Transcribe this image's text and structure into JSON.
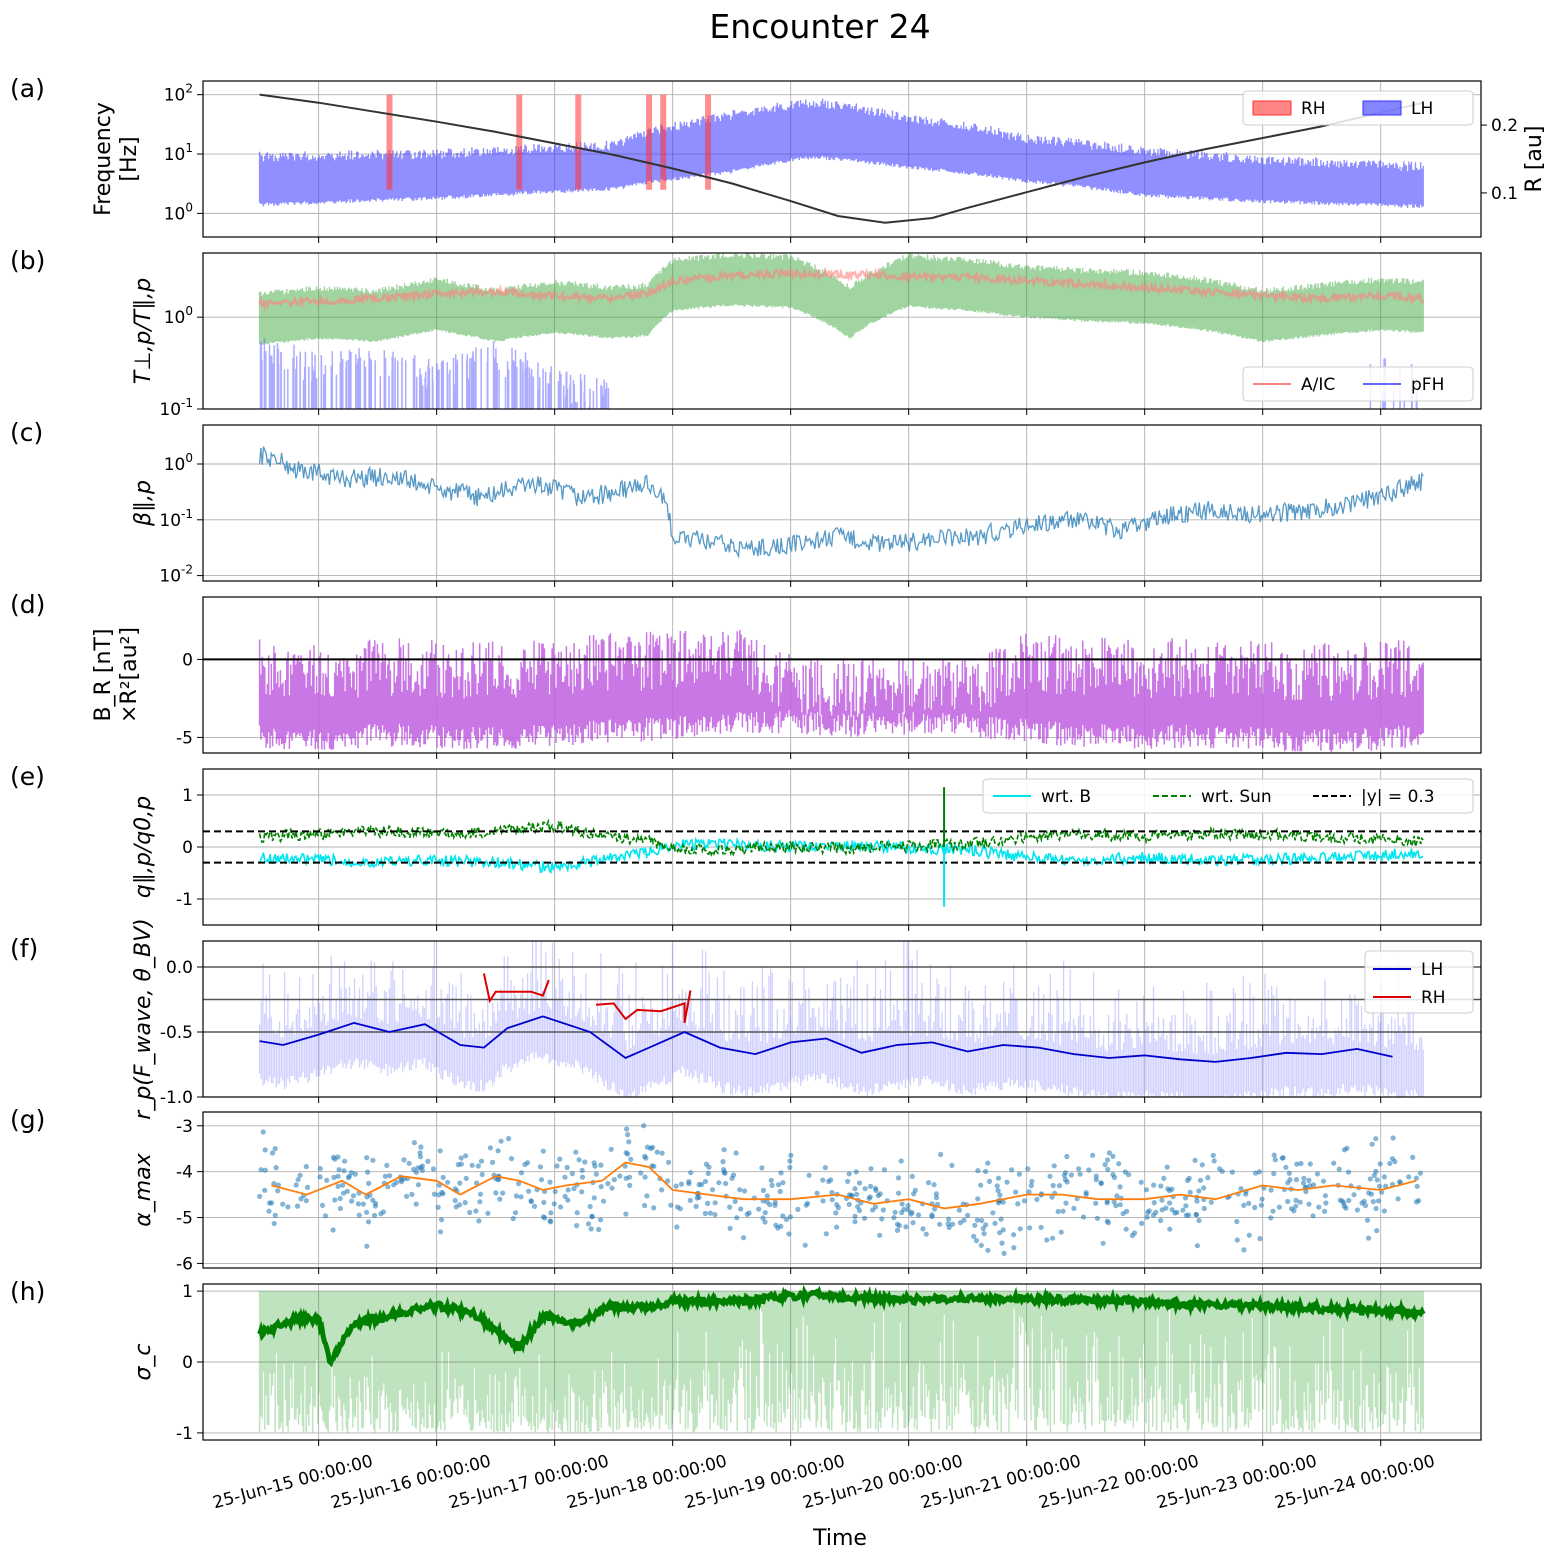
{
  "figure": {
    "title": "Encounter 24",
    "xlabel": "Time",
    "xticks": [
      "25-Jun-15 00:00:00",
      "25-Jun-16 00:00:00",
      "25-Jun-17 00:00:00",
      "25-Jun-18 00:00:00",
      "25-Jun-19 00:00:00",
      "25-Jun-20 00:00:00",
      "25-Jun-21 00:00:00",
      "25-Jun-22 00:00:00",
      "25-Jun-23 00:00:00",
      "25-Jun-24 00:00:00"
    ],
    "xlim_days": [
      14.02,
      24.85
    ],
    "data_span_days": [
      14.5,
      24.36
    ]
  },
  "chart_data": [
    {
      "panel": "(a)",
      "type": "area",
      "ylabel": "Frequency [Hz]",
      "yscale": "log",
      "ylim": [
        0.4,
        170
      ],
      "yticks": [
        "10^0",
        "10^1",
        "10^2"
      ],
      "y2label": "R [au]",
      "y2ticks": [
        "0.1",
        "0.2"
      ],
      "y2lim": [
        0.035,
        0.265
      ],
      "legend": [
        "RH",
        "LH"
      ],
      "legend_loc": "upper right",
      "series": [
        {
          "name": "R",
          "type": "line",
          "color": "#333333",
          "x": [
            14.5,
            15,
            15.5,
            16,
            16.5,
            17,
            17.5,
            18,
            18.5,
            19,
            19.4,
            19.8,
            20.2,
            20.5,
            21,
            21.5,
            22,
            22.5,
            23,
            23.5,
            24.36
          ],
          "values": [
            0.245,
            0.233,
            0.219,
            0.205,
            0.19,
            0.173,
            0.156,
            0.136,
            0.114,
            0.088,
            0.066,
            0.056,
            0.063,
            0.078,
            0.101,
            0.124,
            0.145,
            0.164,
            0.181,
            0.198,
            0.233
          ]
        },
        {
          "name": "LH band low (Hz)",
          "x": [
            14.5,
            16,
            17.5,
            18.5,
            19.2,
            20,
            21,
            22,
            23,
            24.36
          ],
          "values": [
            1.4,
            1.8,
            2.6,
            5,
            9,
            6,
            3.5,
            2,
            1.6,
            1.3
          ]
        },
        {
          "name": "LH band high (Hz)",
          "x": [
            14.5,
            16,
            17.5,
            18.5,
            19.2,
            20,
            21,
            22,
            23,
            24.36
          ],
          "values": [
            9,
            10,
            14,
            45,
            75,
            40,
            18,
            11,
            8,
            6
          ]
        },
        {
          "name": "RH bursts (days)",
          "x": [
            15.6,
            16.7,
            17.2,
            17.8,
            17.92,
            18.3
          ],
          "values": [
            1,
            1,
            1,
            1,
            1,
            1
          ]
        }
      ]
    },
    {
      "panel": "(b)",
      "type": "line",
      "ylabel": "T⊥,p/T∥,p",
      "yscale": "log",
      "ylim": [
        0.1,
        5
      ],
      "yticks": [
        "10^-1",
        "10^0"
      ],
      "legend": [
        "A/IC",
        "pFH"
      ],
      "legend_loc": "lower right",
      "series": [
        {
          "name": "A/IC threshold",
          "color": "#ff8080",
          "x": [
            14.5,
            15,
            15.5,
            16,
            16.5,
            17,
            17.5,
            17.8,
            18,
            18.5,
            19,
            19.5,
            20,
            20.5,
            21,
            21.5,
            22,
            22.5,
            23,
            23.5,
            24,
            24.36
          ],
          "values": [
            1.4,
            1.5,
            1.6,
            1.8,
            1.9,
            1.7,
            1.6,
            1.8,
            2.5,
            2.8,
            3,
            2.9,
            2.8,
            2.7,
            2.5,
            2.3,
            2.1,
            1.9,
            1.7,
            1.6,
            1.7,
            1.6
          ]
        },
        {
          "name": "T ratio",
          "color": "#2ca02c",
          "x": [
            14.5,
            15,
            15.5,
            16,
            16.5,
            17,
            17.5,
            17.8,
            18,
            18.5,
            19,
            19.5,
            20,
            20.5,
            21,
            21.5,
            22,
            22.5,
            23,
            23.5,
            24,
            24.36
          ],
          "values": [
            1.1,
            1.3,
            1.2,
            1.6,
            1.2,
            1.5,
            1.3,
            1.4,
            2.6,
            3,
            2.8,
            1.3,
            2.9,
            2.6,
            2.2,
            2.0,
            1.9,
            1.6,
            1.2,
            1.4,
            1.6,
            1.5
          ]
        },
        {
          "name": "pFH threshold",
          "color": "#6666ff",
          "x": [
            14.5,
            15,
            15.5,
            16,
            16.5,
            17,
            17.5
          ],
          "values": [
            0.45,
            0.3,
            0.35,
            0.25,
            0.4,
            0.2,
            0.15
          ]
        }
      ]
    },
    {
      "panel": "(c)",
      "type": "line",
      "ylabel": "β∥,p",
      "yscale": "log",
      "ylim": [
        0.008,
        5
      ],
      "yticks": [
        "10^-2",
        "10^-1",
        "10^0"
      ],
      "series": [
        {
          "name": "beta",
          "color": "#1f77b4",
          "x": [
            14.5,
            14.8,
            15.2,
            15.6,
            16,
            16.4,
            16.8,
            17.2,
            17.5,
            17.8,
            18,
            18.3,
            18.6,
            19,
            19.4,
            19.8,
            20.2,
            20.6,
            21,
            21.4,
            21.8,
            22.2,
            22.6,
            23,
            23.4,
            23.8,
            24.1,
            24.36
          ],
          "values": [
            1.5,
            0.8,
            0.55,
            0.6,
            0.35,
            0.25,
            0.45,
            0.25,
            0.3,
            0.45,
            0.05,
            0.04,
            0.03,
            0.035,
            0.05,
            0.035,
            0.045,
            0.05,
            0.08,
            0.1,
            0.06,
            0.12,
            0.15,
            0.12,
            0.15,
            0.2,
            0.3,
            0.5
          ]
        }
      ]
    },
    {
      "panel": "(d)",
      "type": "area",
      "ylabel": "B_R [nT] ×R²[au²]",
      "ylim": [
        -6,
        4
      ],
      "yticks": [
        "-5",
        "0"
      ],
      "series": [
        {
          "name": "BR R^2 baseline",
          "color": "#bf5fdf",
          "x": [
            14.5,
            15,
            15.5,
            16,
            16.5,
            17,
            17.5,
            18,
            18.5,
            19,
            19.5,
            20,
            20.5,
            21,
            21.5,
            22,
            22.5,
            23,
            23.5,
            24,
            24.36
          ],
          "values": [
            -4.4,
            -4.6,
            -4.2,
            -4.3,
            -4.5,
            -4.2,
            -4.0,
            -3.8,
            -3.5,
            -3.4,
            -3.6,
            -3.5,
            -3.6,
            -4.0,
            -4.3,
            -4.4,
            -4.3,
            -4.5,
            -4.6,
            -4.5,
            -4.2
          ]
        }
      ]
    },
    {
      "panel": "(e)",
      "type": "line",
      "ylabel": "q∥,p/q0,p",
      "ylim": [
        -1.5,
        1.5
      ],
      "yticks": [
        "-1",
        "0",
        "1"
      ],
      "legend": [
        "wrt. B",
        "wrt. Sun",
        "|y| = 0.3"
      ],
      "legend_loc": "upper right",
      "series": [
        {
          "name": "wrt. B",
          "color": "#00e5ee",
          "x": [
            14.5,
            15,
            15.5,
            16,
            16.5,
            17,
            17.5,
            17.8,
            18,
            18.5,
            19,
            19.5,
            20,
            20.5,
            21,
            21.5,
            22,
            22.5,
            23,
            23.5,
            24,
            24.36
          ],
          "values": [
            -0.2,
            -0.25,
            -0.3,
            -0.25,
            -0.3,
            -0.4,
            -0.2,
            -0.1,
            0.05,
            0.05,
            0.0,
            0.02,
            -0.02,
            -0.05,
            -0.2,
            -0.25,
            -0.2,
            -0.25,
            -0.25,
            -0.2,
            -0.15,
            -0.1
          ]
        },
        {
          "name": "wrt. Sun",
          "color": "#008000",
          "x": [
            14.5,
            15,
            15.5,
            16,
            16.5,
            17,
            17.5,
            17.8,
            18,
            18.5,
            19,
            19.5,
            20,
            20.5,
            21,
            21.5,
            22,
            22.5,
            23,
            23.5,
            24,
            24.36
          ],
          "values": [
            0.2,
            0.25,
            0.3,
            0.25,
            0.3,
            0.4,
            0.2,
            0.1,
            -0.05,
            -0.05,
            0.0,
            -0.02,
            0.02,
            0.05,
            0.2,
            0.25,
            0.2,
            0.25,
            0.25,
            0.2,
            0.15,
            0.1
          ]
        },
        {
          "name": "|y| = 0.3",
          "values": [
            0.3,
            -0.3
          ]
        }
      ]
    },
    {
      "panel": "(f)",
      "type": "line",
      "ylabel": "r_p(F_wave, θ_BV)",
      "ylim": [
        -1.0,
        0.2
      ],
      "yticks": [
        "-1.0",
        "-0.5",
        "0.0"
      ],
      "hlines": [
        0.0,
        -0.25,
        -0.5
      ],
      "legend": [
        "LH",
        "RH"
      ],
      "legend_loc": "upper right",
      "series": [
        {
          "name": "LH",
          "color": "#0000cc",
          "x": [
            14.5,
            14.7,
            15,
            15.3,
            15.6,
            15.9,
            16.2,
            16.4,
            16.6,
            16.9,
            17.3,
            17.6,
            17.9,
            18.1,
            18.4,
            18.7,
            19,
            19.3,
            19.6,
            19.9,
            20.2,
            20.5,
            20.8,
            21.1,
            21.4,
            21.7,
            22,
            22.3,
            22.6,
            22.9,
            23.2,
            23.5,
            23.8,
            24.1
          ],
          "values": [
            -0.57,
            -0.6,
            -0.52,
            -0.43,
            -0.5,
            -0.44,
            -0.6,
            -0.62,
            -0.47,
            -0.38,
            -0.5,
            -0.7,
            -0.58,
            -0.5,
            -0.62,
            -0.67,
            -0.58,
            -0.55,
            -0.66,
            -0.6,
            -0.58,
            -0.65,
            -0.6,
            -0.62,
            -0.67,
            -0.7,
            -0.68,
            -0.71,
            -0.73,
            -0.7,
            -0.66,
            -0.67,
            -0.63,
            -0.69
          ]
        },
        {
          "name": "RH",
          "color": "#dd0000",
          "x": [
            16.4,
            16.45,
            16.5,
            16.8,
            16.9,
            16.95,
            17.35,
            17.5,
            17.6,
            17.7,
            17.9,
            18.1,
            18.1,
            18.15
          ],
          "values": [
            -0.05,
            -0.26,
            -0.19,
            -0.19,
            -0.22,
            -0.1,
            -0.29,
            -0.28,
            -0.4,
            -0.33,
            -0.34,
            -0.28,
            -0.43,
            -0.18
          ]
        }
      ]
    },
    {
      "panel": "(g)",
      "type": "scatter",
      "ylabel": "α_max",
      "ylim": [
        -6.1,
        -2.7
      ],
      "yticks": [
        "-6",
        "-5",
        "-4",
        "-3"
      ],
      "series": [
        {
          "name": "alpha_max running mean",
          "color": "#ff7f0e",
          "x": [
            14.6,
            14.9,
            15.2,
            15.4,
            15.7,
            16,
            16.2,
            16.5,
            16.7,
            16.9,
            17.1,
            17.4,
            17.6,
            17.8,
            18,
            18.3,
            18.6,
            19,
            19.4,
            19.7,
            20,
            20.3,
            20.6,
            21,
            21.3,
            21.6,
            22,
            22.3,
            22.6,
            23,
            23.3,
            23.6,
            24,
            24.3
          ],
          "values": [
            -4.3,
            -4.5,
            -4.2,
            -4.5,
            -4.1,
            -4.2,
            -4.5,
            -4.1,
            -4.2,
            -4.4,
            -4.3,
            -4.2,
            -3.8,
            -3.9,
            -4.4,
            -4.5,
            -4.6,
            -4.6,
            -4.5,
            -4.7,
            -4.6,
            -4.8,
            -4.7,
            -4.5,
            -4.5,
            -4.6,
            -4.6,
            -4.5,
            -4.6,
            -4.3,
            -4.4,
            -4.3,
            -4.4,
            -4.2
          ]
        }
      ]
    },
    {
      "panel": "(h)",
      "type": "line",
      "ylabel": "σ_c",
      "ylim": [
        -1.1,
        1.1
      ],
      "yticks": [
        "-1",
        "0",
        "1"
      ],
      "series": [
        {
          "name": "sigma_c",
          "color": "#008000",
          "x": [
            14.5,
            14.8,
            15.0,
            15.1,
            15.3,
            15.6,
            16,
            16.3,
            16.5,
            16.7,
            16.9,
            17.2,
            17.5,
            17.8,
            18,
            18.4,
            18.8,
            19.2,
            19.6,
            20,
            20.4,
            20.8,
            21.2,
            21.6,
            22,
            22.4,
            22.8,
            23.2,
            23.6,
            24,
            24.36
          ],
          "values": [
            0.4,
            0.6,
            0.6,
            0.0,
            0.55,
            0.65,
            0.8,
            0.7,
            0.45,
            0.2,
            0.65,
            0.55,
            0.8,
            0.75,
            0.85,
            0.85,
            0.9,
            0.95,
            0.9,
            0.88,
            0.9,
            0.88,
            0.88,
            0.87,
            0.85,
            0.82,
            0.8,
            0.78,
            0.75,
            0.72,
            0.7
          ]
        }
      ]
    }
  ]
}
